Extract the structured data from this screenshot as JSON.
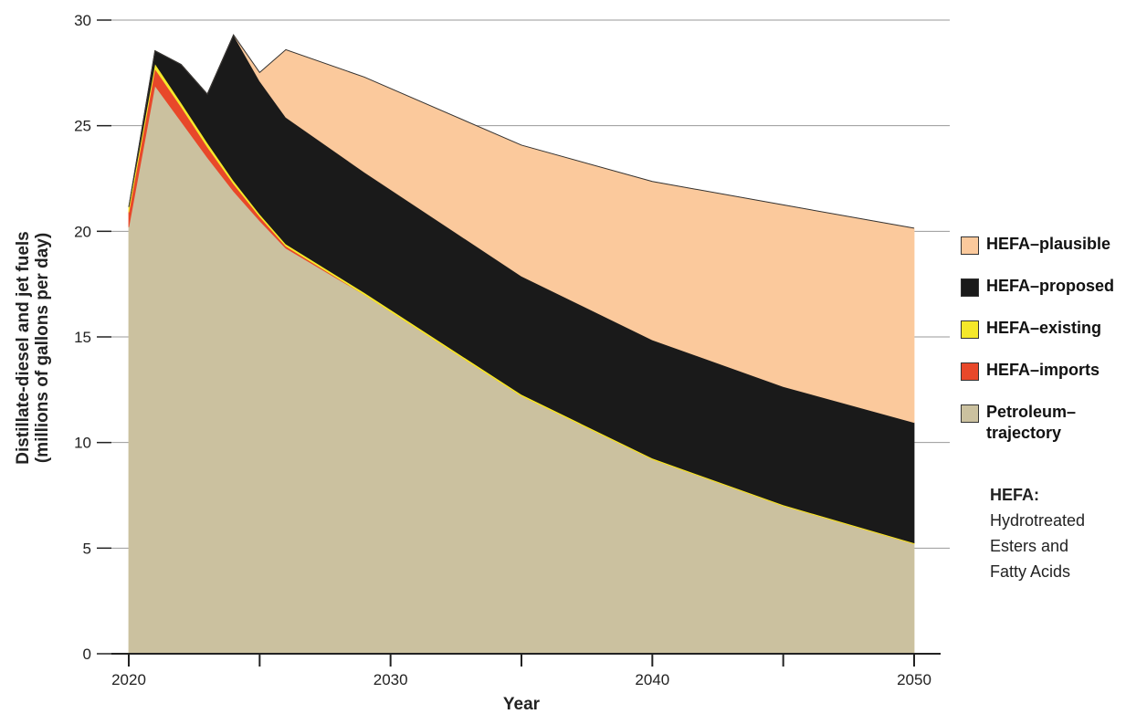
{
  "chart_data": {
    "type": "area",
    "stacked": true,
    "xlabel": "Year",
    "ylabel": [
      "Distillate-diesel and jet fuels",
      "(millions of gallons per day)"
    ],
    "xlim": [
      2020,
      2050
    ],
    "ylim": [
      0,
      30
    ],
    "x_ticks": [
      2020,
      2030,
      2040,
      2050
    ],
    "x_minor_ticks": [
      2025,
      2035,
      2045
    ],
    "y_ticks": [
      0,
      5,
      10,
      15,
      20,
      25,
      30
    ],
    "grid": "horizontal",
    "legend_position": "right",
    "x": [
      2020,
      2021,
      2022,
      2023,
      2024,
      2025,
      2026,
      2029,
      2035,
      2040,
      2045,
      2050
    ],
    "series": [
      {
        "name": "Petroleum–trajectory",
        "color": "#cbc19f",
        "values": [
          20.2,
          26.9,
          25.2,
          23.5,
          21.9,
          20.5,
          19.2,
          17.0,
          12.2,
          9.2,
          7.0,
          5.2
        ]
      },
      {
        "name": "HEFA–imports",
        "color": "#e8482a",
        "values": [
          0.7,
          0.8,
          0.7,
          0.5,
          0.35,
          0.2,
          0.1,
          0.0,
          0.0,
          0.0,
          0.0,
          0.0
        ]
      },
      {
        "name": "HEFA–existing",
        "color": "#f5e82a",
        "values": [
          0.25,
          0.25,
          0.2,
          0.2,
          0.15,
          0.12,
          0.1,
          0.1,
          0.08,
          0.06,
          0.05,
          0.05
        ]
      },
      {
        "name": "HEFA–proposed",
        "color": "#1a1a1a",
        "values": [
          0.0,
          0.6,
          1.8,
          2.3,
          6.9,
          6.3,
          6.0,
          5.7,
          5.6,
          5.6,
          5.6,
          5.7
        ]
      },
      {
        "name": "HEFA–plausible",
        "color": "#fbc99c",
        "values": [
          0.0,
          0.0,
          0.0,
          0.0,
          0.0,
          0.4,
          3.2,
          4.5,
          6.2,
          7.5,
          8.6,
          9.2
        ]
      }
    ],
    "legend_order": [
      "HEFA–plausible",
      "HEFA–proposed",
      "HEFA–existing",
      "HEFA–imports",
      "Petroleum–trajectory"
    ],
    "legend_labels": [
      [
        "HEFA–plausible"
      ],
      [
        "HEFA–proposed"
      ],
      [
        "HEFA–existing"
      ],
      [
        "HEFA–imports"
      ],
      [
        "Petroleum–",
        "trajectory"
      ]
    ],
    "note": {
      "title": "HEFA:",
      "lines": [
        "Hydrotreated",
        "Esters and",
        "Fatty Acids"
      ]
    }
  }
}
